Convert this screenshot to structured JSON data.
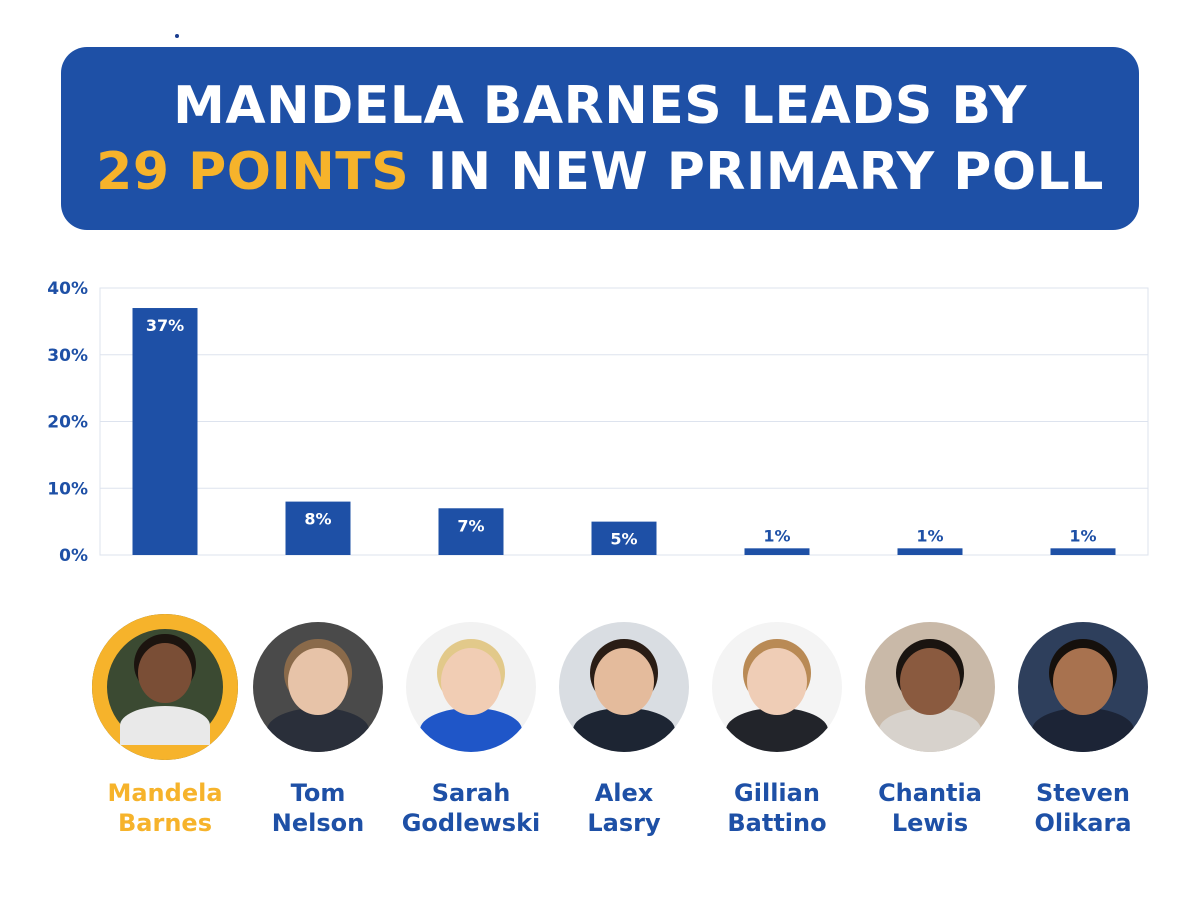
{
  "headline": {
    "line1": "MANDELA BARNES LEADS BY",
    "highlight": "29 POINTS",
    "line2_rest": " IN NEW PRIMARY POLL"
  },
  "colors": {
    "brand_blue": "#1e50a6",
    "highlight_gold": "#f6b32b",
    "grid": "#dde3ee"
  },
  "chart_data": {
    "type": "bar",
    "title": "",
    "xlabel": "",
    "ylabel": "",
    "ylim": [
      0,
      40
    ],
    "yticks": [
      0,
      10,
      20,
      30,
      40
    ],
    "ytick_labels": [
      "0%",
      "10%",
      "20%",
      "30%",
      "40%"
    ],
    "grid": true,
    "categories": [
      "Mandela Barnes",
      "Tom Nelson",
      "Sarah Godlewski",
      "Alex Lasry",
      "Gillian Battino",
      "Chantia Lewis",
      "Steven Olikara"
    ],
    "values": [
      37,
      8,
      7,
      5,
      1,
      1,
      1
    ],
    "data_labels": [
      "37%",
      "8%",
      "7%",
      "5%",
      "1%",
      "1%",
      "1%"
    ]
  },
  "candidates": [
    {
      "first": "Mandela",
      "last": "Barnes",
      "lead": true,
      "photo": "portrait-barnes"
    },
    {
      "first": "Tom",
      "last": "Nelson",
      "lead": false,
      "photo": "portrait-nelson"
    },
    {
      "first": "Sarah",
      "last": "Godlewski",
      "lead": false,
      "photo": "portrait-godlewski"
    },
    {
      "first": "Alex",
      "last": "Lasry",
      "lead": false,
      "photo": "portrait-lasry"
    },
    {
      "first": "Gillian",
      "last": "Battino",
      "lead": false,
      "photo": "portrait-battino"
    },
    {
      "first": "Chantia",
      "last": "Lewis",
      "lead": false,
      "photo": "portrait-lewis"
    },
    {
      "first": "Steven",
      "last": "Olikara",
      "lead": false,
      "photo": "portrait-olikara"
    }
  ]
}
